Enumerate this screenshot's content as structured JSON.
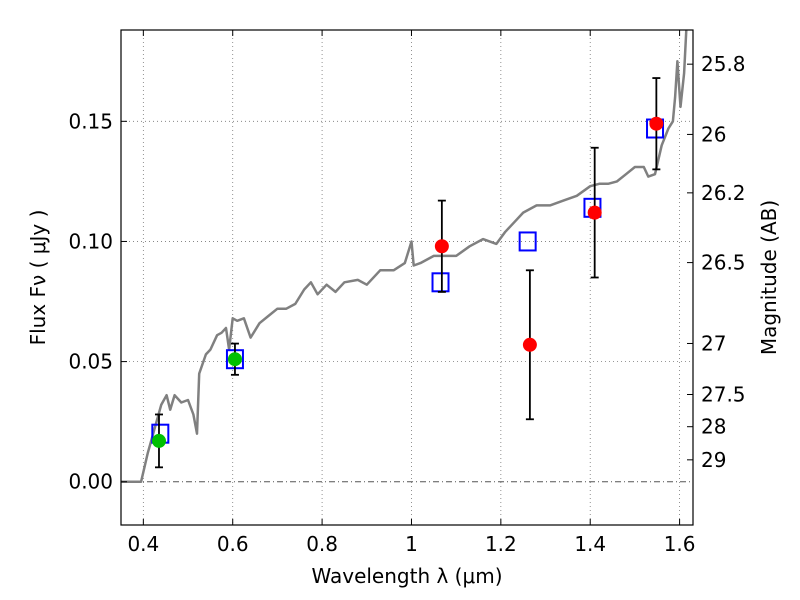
{
  "chart_data": {
    "type": "scatter",
    "xlabel": "Wavelength  λ (μm)",
    "ylabel": "Flux  Fν  ( μJy )",
    "y2label": "Magnitude (AB)",
    "xlim": [
      0.35,
      1.63
    ],
    "ylim": [
      -0.018,
      0.188
    ],
    "grid": true,
    "x_ticks": [
      {
        "value": 0.4,
        "label": "0.4"
      },
      {
        "value": 0.6,
        "label": "0.6"
      },
      {
        "value": 0.8,
        "label": "0.8"
      },
      {
        "value": 1.0,
        "label": "1"
      },
      {
        "value": 1.2,
        "label": "1.2"
      },
      {
        "value": 1.4,
        "label": "1.4"
      },
      {
        "value": 1.6,
        "label": "1.6"
      }
    ],
    "y_ticks": [
      {
        "value": 0.0,
        "label": "0.00"
      },
      {
        "value": 0.05,
        "label": "0.05"
      },
      {
        "value": 0.1,
        "label": "0.10"
      },
      {
        "value": 0.15,
        "label": "0.15"
      }
    ],
    "mag_ticks": [
      "25.8",
      "26",
      "26.2",
      "26.5",
      "27",
      "27.5",
      "28",
      "29"
    ],
    "colors": {
      "spectrum": "#808080",
      "model": "#0000ff",
      "detection_red": "#ff0000",
      "detection_green": "#00c000",
      "errorbar": "#000000"
    },
    "spectrum": [
      [
        0.35,
        0.0
      ],
      [
        0.38,
        0.0
      ],
      [
        0.395,
        0.0
      ],
      [
        0.41,
        0.012
      ],
      [
        0.425,
        0.022
      ],
      [
        0.44,
        0.032
      ],
      [
        0.452,
        0.036
      ],
      [
        0.46,
        0.03
      ],
      [
        0.47,
        0.036
      ],
      [
        0.485,
        0.033
      ],
      [
        0.5,
        0.034
      ],
      [
        0.512,
        0.028
      ],
      [
        0.52,
        0.02
      ],
      [
        0.525,
        0.045
      ],
      [
        0.54,
        0.053
      ],
      [
        0.55,
        0.055
      ],
      [
        0.565,
        0.061
      ],
      [
        0.575,
        0.062
      ],
      [
        0.585,
        0.064
      ],
      [
        0.592,
        0.055
      ],
      [
        0.6,
        0.068
      ],
      [
        0.61,
        0.067
      ],
      [
        0.625,
        0.068
      ],
      [
        0.64,
        0.06
      ],
      [
        0.66,
        0.066
      ],
      [
        0.68,
        0.069
      ],
      [
        0.7,
        0.072
      ],
      [
        0.72,
        0.072
      ],
      [
        0.74,
        0.074
      ],
      [
        0.76,
        0.08
      ],
      [
        0.775,
        0.083
      ],
      [
        0.79,
        0.078
      ],
      [
        0.81,
        0.082
      ],
      [
        0.83,
        0.079
      ],
      [
        0.85,
        0.083
      ],
      [
        0.88,
        0.084
      ],
      [
        0.9,
        0.082
      ],
      [
        0.93,
        0.088
      ],
      [
        0.96,
        0.088
      ],
      [
        0.985,
        0.091
      ],
      [
        1.0,
        0.1
      ],
      [
        1.005,
        0.09
      ],
      [
        1.02,
        0.091
      ],
      [
        1.05,
        0.094
      ],
      [
        1.08,
        0.094
      ],
      [
        1.1,
        0.094
      ],
      [
        1.13,
        0.098
      ],
      [
        1.16,
        0.101
      ],
      [
        1.19,
        0.099
      ],
      [
        1.21,
        0.104
      ],
      [
        1.23,
        0.108
      ],
      [
        1.25,
        0.112
      ],
      [
        1.28,
        0.115
      ],
      [
        1.31,
        0.115
      ],
      [
        1.34,
        0.117
      ],
      [
        1.37,
        0.119
      ],
      [
        1.4,
        0.123
      ],
      [
        1.42,
        0.124
      ],
      [
        1.44,
        0.124
      ],
      [
        1.46,
        0.125
      ],
      [
        1.48,
        0.128
      ],
      [
        1.5,
        0.131
      ],
      [
        1.52,
        0.131
      ],
      [
        1.53,
        0.127
      ],
      [
        1.545,
        0.128
      ],
      [
        1.56,
        0.14
      ],
      [
        1.575,
        0.147
      ],
      [
        1.585,
        0.15
      ],
      [
        1.59,
        0.16
      ],
      [
        1.595,
        0.175
      ],
      [
        1.602,
        0.156
      ],
      [
        1.61,
        0.17
      ],
      [
        1.615,
        0.188
      ]
    ],
    "model_points": [
      {
        "x": 0.438,
        "y": 0.02
      },
      {
        "x": 0.605,
        "y": 0.051
      },
      {
        "x": 1.065,
        "y": 0.083
      },
      {
        "x": 1.26,
        "y": 0.1
      },
      {
        "x": 1.405,
        "y": 0.114
      },
      {
        "x": 1.545,
        "y": 0.147
      }
    ],
    "detections": [
      {
        "x": 0.435,
        "y": 0.017,
        "err": 0.011,
        "color": "#00c000"
      },
      {
        "x": 0.605,
        "y": 0.051,
        "err": 0.0065,
        "color": "#00c000"
      },
      {
        "x": 1.068,
        "y": 0.098,
        "err": 0.019,
        "color": "#ff0000"
      },
      {
        "x": 1.265,
        "y": 0.057,
        "err": 0.031,
        "color": "#ff0000"
      },
      {
        "x": 1.41,
        "y": 0.112,
        "err": 0.027,
        "color": "#ff0000"
      },
      {
        "x": 1.548,
        "y": 0.149,
        "err": 0.019,
        "color": "#ff0000"
      }
    ]
  }
}
